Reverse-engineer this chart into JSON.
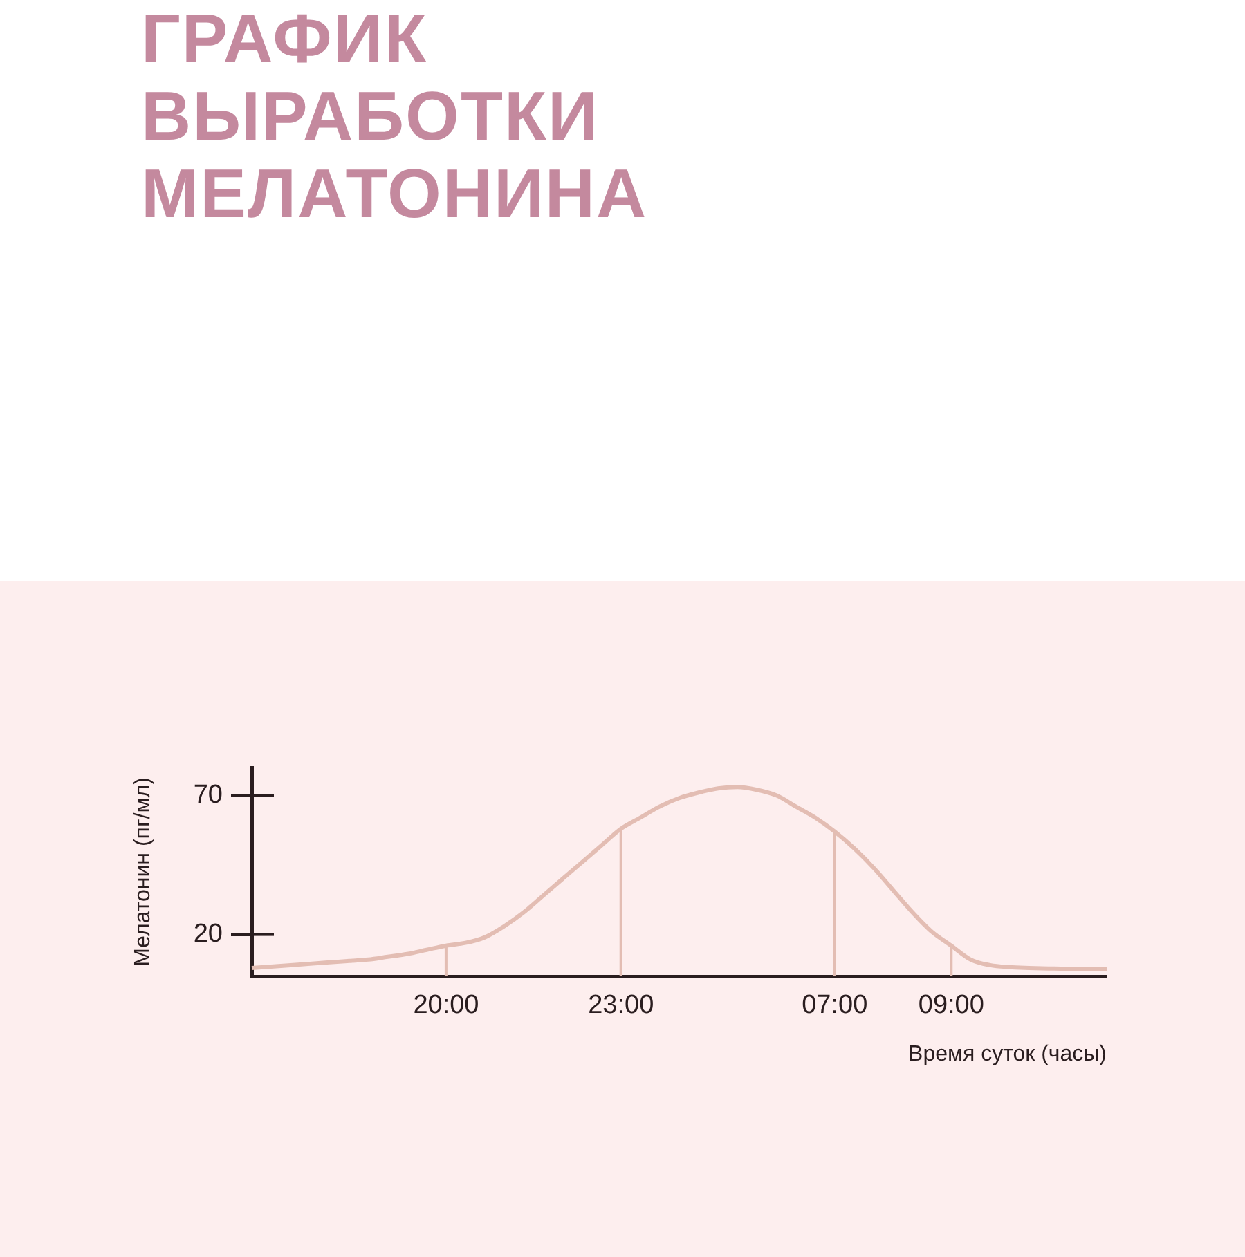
{
  "chart_data": {
    "type": "line",
    "title": "ГРАФИК ВЫРАБОТКИ МЕЛАТОНИНА",
    "xlabel": "Время суток (часы)",
    "ylabel": "Мелатонин (пг/мл)",
    "categories": [
      null,
      null,
      null,
      null,
      null,
      null,
      null,
      null,
      null,
      null,
      "20:00",
      null,
      null,
      null,
      null,
      null,
      null,
      null,
      null,
      "23:00",
      null,
      null,
      null,
      null,
      null,
      null,
      null,
      null,
      null,
      null,
      "07:00",
      null,
      null,
      null,
      null,
      null,
      "09:00",
      null,
      null,
      null,
      null,
      null,
      null,
      null,
      null
    ],
    "series": [
      {
        "color": "#e3bdb3",
        "values": [
          8,
          8.5,
          9,
          9.5,
          10,
          10.5,
          11,
          12,
          13,
          14.5,
          16,
          17,
          19,
          23,
          28,
          34,
          40,
          46,
          52,
          58,
          62,
          66,
          69,
          71,
          72.5,
          73,
          72,
          70,
          66,
          62,
          57,
          51,
          44,
          36,
          28,
          21,
          16,
          11,
          9,
          8.3,
          8,
          7.8,
          7.7,
          7.6,
          7.6
        ]
      }
    ],
    "ylim": [
      5,
      80
    ],
    "yticks": [
      20,
      70
    ],
    "grid": false,
    "legend": false,
    "marker": "none",
    "line_style": "solid",
    "ref_lines": [
      {
        "axis": "x",
        "value": "20:00",
        "color": "#e3bdb3"
      },
      {
        "axis": "x",
        "value": "23:00",
        "color": "#e3bdb3"
      },
      {
        "axis": "x",
        "value": "07:00",
        "color": "#e3bdb3"
      },
      {
        "axis": "x",
        "value": "09:00",
        "color": "#e3bdb3"
      }
    ]
  }
}
